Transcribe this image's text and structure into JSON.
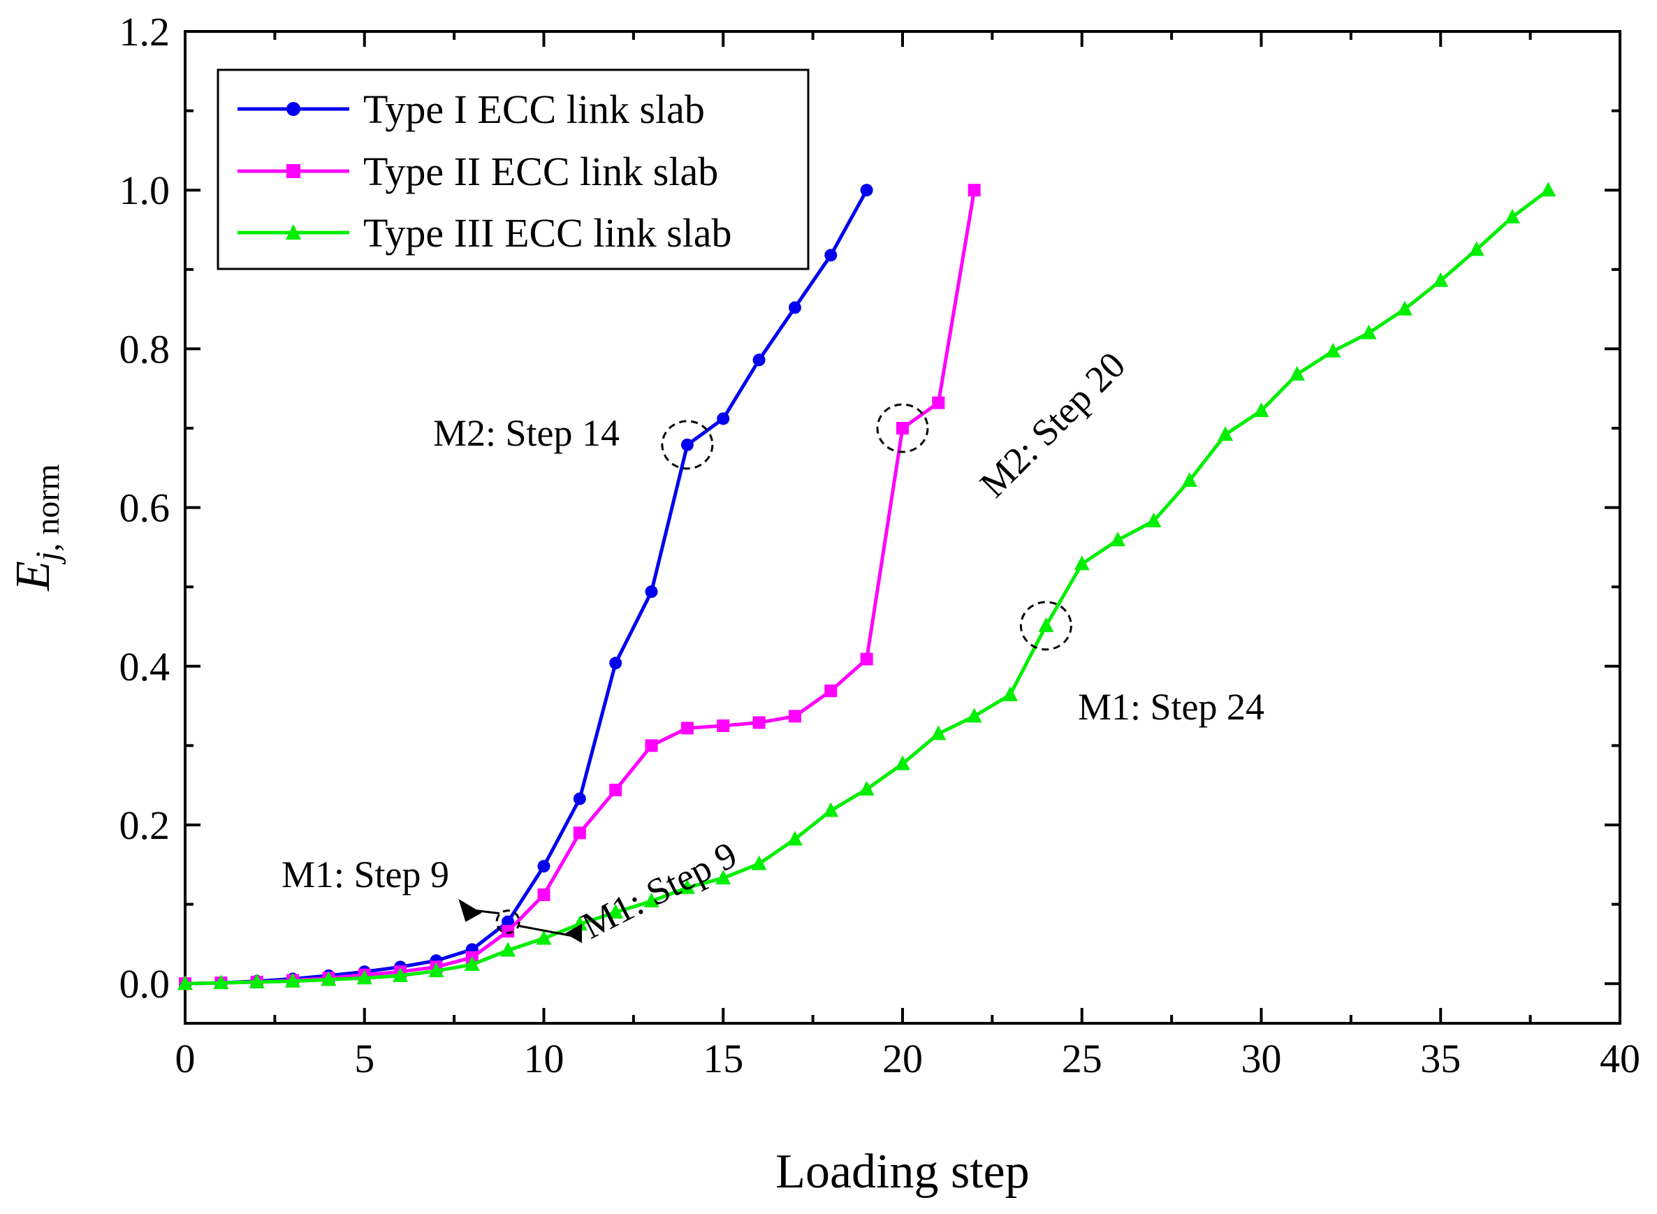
{
  "chart_data": {
    "type": "line",
    "xlabel": "Loading step",
    "ylabel": {
      "main": "E",
      "italic_sub": "j",
      "sub": ", norm"
    },
    "xlim": [
      0,
      40
    ],
    "ylim": [
      -0.05,
      1.2
    ],
    "xticks": [
      0,
      5,
      10,
      15,
      20,
      25,
      30,
      35,
      40
    ],
    "yticks": [
      0.0,
      0.2,
      0.4,
      0.6,
      0.8,
      1.0,
      1.2
    ],
    "xtick_labels": [
      "0",
      "5",
      "10",
      "15",
      "20",
      "25",
      "30",
      "35",
      "40"
    ],
    "ytick_labels": [
      "0.0",
      "0.2",
      "0.4",
      "0.6",
      "0.8",
      "1.0",
      "1.2"
    ],
    "grid": false,
    "legend_position": "top-left",
    "series": [
      {
        "name": "Type I ECC link slab",
        "color": "#0000ee",
        "marker": "circle",
        "x": [
          0,
          1,
          2,
          3,
          4,
          5,
          6,
          7,
          8,
          9,
          10,
          11,
          12,
          13,
          14,
          15,
          16,
          17,
          18,
          19
        ],
        "values": [
          0,
          0.001,
          0.003,
          0.006,
          0.01,
          0.015,
          0.021,
          0.029,
          0.043,
          0.078,
          0.148,
          0.233,
          0.404,
          0.494,
          0.679,
          0.712,
          0.786,
          0.852,
          0.918,
          1.0
        ]
      },
      {
        "name": "Type II ECC link slab",
        "color": "#ff00ff",
        "marker": "square",
        "x": [
          0,
          1,
          2,
          3,
          4,
          5,
          6,
          7,
          8,
          9,
          10,
          11,
          12,
          13,
          14,
          15,
          16,
          17,
          18,
          19,
          20,
          21,
          22
        ],
        "values": [
          0,
          0.001,
          0.002,
          0.004,
          0.007,
          0.011,
          0.015,
          0.021,
          0.033,
          0.066,
          0.112,
          0.19,
          0.244,
          0.3,
          0.322,
          0.325,
          0.329,
          0.337,
          0.369,
          0.409,
          0.7,
          0.732,
          1.0
        ]
      },
      {
        "name": "Type III ECC link slab",
        "color": "#00ee00",
        "marker": "triangle",
        "x": [
          0,
          1,
          2,
          3,
          4,
          5,
          6,
          7,
          8,
          9,
          10,
          11,
          12,
          13,
          14,
          15,
          16,
          17,
          18,
          19,
          20,
          21,
          22,
          23,
          24,
          25,
          26,
          27,
          28,
          29,
          30,
          31,
          32,
          33,
          34,
          35,
          36,
          37,
          38
        ],
        "values": [
          0,
          0.001,
          0.002,
          0.003,
          0.005,
          0.007,
          0.01,
          0.016,
          0.024,
          0.042,
          0.057,
          0.075,
          0.09,
          0.104,
          0.121,
          0.133,
          0.151,
          0.182,
          0.218,
          0.245,
          0.277,
          0.315,
          0.337,
          0.364,
          0.451,
          0.529,
          0.559,
          0.583,
          0.634,
          0.692,
          0.722,
          0.768,
          0.797,
          0.82,
          0.85,
          0.886,
          0.925,
          0.966,
          1.0
        ]
      }
    ],
    "annotations": [
      {
        "text": "M2: Step 14",
        "x": 14,
        "y": 0.679
      },
      {
        "text": "M2: Step 20",
        "x": 20,
        "y": 0.7
      },
      {
        "text": "M1: Step 24",
        "x": 24,
        "y": 0.451
      },
      {
        "text": "M1: Step 9",
        "x": 9,
        "y": 0.078
      },
      {
        "text": "M1: Step 9",
        "x": 9,
        "y": 0.066
      }
    ]
  }
}
